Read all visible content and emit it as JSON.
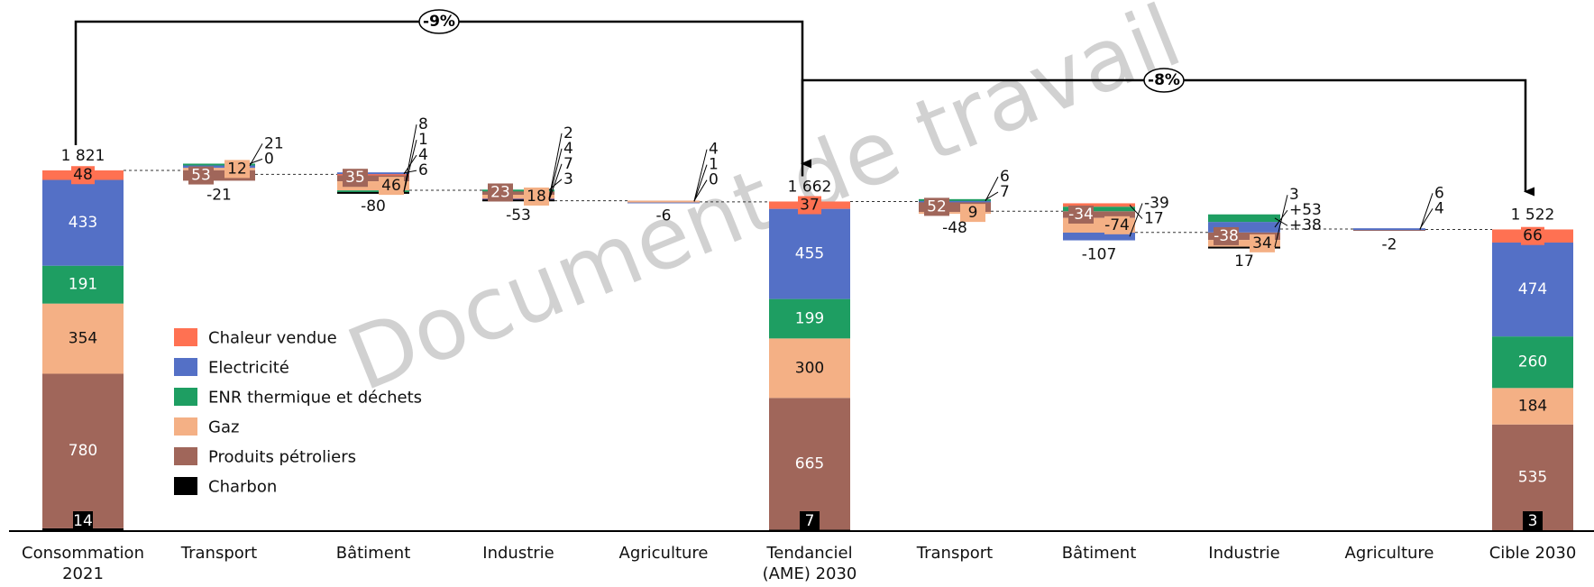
{
  "chart_data": {
    "type": "bar",
    "subtype": "stacked-waterfall",
    "title": "",
    "xlabel": "",
    "ylabel": "",
    "grid": false,
    "legend_position": "left, inside plot area",
    "watermark": "Document de travail",
    "colors": {
      "Chaleur vendue": "#ff7152",
      "Electricité": "#5470c6",
      "ENR thermique et déchets": "#1e9e62",
      "Gaz": "#f4b085",
      "Produits pétroliers": "#a0665a",
      "Charbon": "#000000"
    },
    "legend": [
      "Chaleur vendue",
      "Electricité",
      "ENR thermique et déchets",
      "Gaz",
      "Produits pétroliers",
      "Charbon"
    ],
    "categories": [
      {
        "line1": "Consommation",
        "line2": "2021"
      },
      {
        "line1": "Transport",
        "line2": ""
      },
      {
        "line1": "Bâtiment",
        "line2": ""
      },
      {
        "line1": "Industrie",
        "line2": ""
      },
      {
        "line1": "Agriculture",
        "line2": ""
      },
      {
        "line1": "Tendanciel",
        "line2": "(AME) 2030"
      },
      {
        "line1": "Transport",
        "line2": ""
      },
      {
        "line1": "Bâtiment",
        "line2": ""
      },
      {
        "line1": "Industrie",
        "line2": ""
      },
      {
        "line1": "Agriculture",
        "line2": ""
      },
      {
        "line1": "Cible 2030",
        "line2": ""
      }
    ],
    "totals": [
      {
        "category": "Consommation 2021",
        "total": 1821,
        "total_label": "1 821",
        "stack": [
          {
            "name": "Charbon",
            "value": 14,
            "label": "14"
          },
          {
            "name": "Produits pétroliers",
            "value": 780,
            "label": "780"
          },
          {
            "name": "Gaz",
            "value": 354,
            "label": "354"
          },
          {
            "name": "ENR thermique et déchets",
            "value": 191,
            "label": "191"
          },
          {
            "name": "Electricité",
            "value": 433,
            "label": "433"
          },
          {
            "name": "Chaleur vendue",
            "value": 48,
            "label": "48"
          }
        ]
      },
      {
        "category": "Tendanciel (AME) 2030",
        "total": 1662,
        "total_label": "1 662",
        "stack": [
          {
            "name": "Charbon",
            "value": 7,
            "label": "7"
          },
          {
            "name": "Produits pétroliers",
            "value": 665,
            "label": "665"
          },
          {
            "name": "Gaz",
            "value": 300,
            "label": "300"
          },
          {
            "name": "ENR thermique et déchets",
            "value": 199,
            "label": "199"
          },
          {
            "name": "Electricité",
            "value": 455,
            "label": "455"
          },
          {
            "name": "Chaleur vendue",
            "value": 37,
            "label": "37"
          }
        ]
      },
      {
        "category": "Cible 2030",
        "total": 1522,
        "total_label": "1 522",
        "stack": [
          {
            "name": "Charbon",
            "value": 3,
            "label": "3"
          },
          {
            "name": "Produits pétroliers",
            "value": 535,
            "label": "535"
          },
          {
            "name": "Gaz",
            "value": 184,
            "label": "184"
          },
          {
            "name": "ENR thermique et déchets",
            "value": 260,
            "label": "260"
          },
          {
            "name": "Electricité",
            "value": 474,
            "label": "474"
          },
          {
            "name": "Chaleur vendue",
            "value": 66,
            "label": "66"
          }
        ]
      }
    ],
    "deltas": [
      {
        "category": "Transport",
        "start": 1821,
        "net": -21,
        "net_label": "-21",
        "changes": [
          {
            "name": "Produits pétroliers",
            "value": -53,
            "label": "53"
          },
          {
            "name": "Gaz",
            "value": 12,
            "label": "12"
          },
          {
            "name": "Electricité",
            "value": 21,
            "label": "21"
          },
          {
            "name": "ENR thermique et déchets",
            "value": 0,
            "label": "0"
          }
        ]
      },
      {
        "category": "Bâtiment",
        "start": 1800,
        "net": -80,
        "net_label": "-80",
        "changes": [
          {
            "name": "Produits pétroliers",
            "value": -35,
            "label": "35"
          },
          {
            "name": "Gaz",
            "value": -46,
            "label": "46"
          },
          {
            "name": "Chaleur vendue",
            "value": 4,
            "label": "4"
          },
          {
            "name": "Electricité",
            "value": 6,
            "label": "6"
          },
          {
            "name": "ENR thermique et déchets",
            "value": -8,
            "label": "8"
          },
          {
            "name": "Charbon",
            "value": -1,
            "label": "1"
          }
        ]
      },
      {
        "category": "Industrie",
        "start": 1720,
        "net": -53,
        "net_label": "-53",
        "changes": [
          {
            "name": "Produits pétroliers",
            "value": -23,
            "label": "23"
          },
          {
            "name": "Gaz",
            "value": -18,
            "label": "18"
          },
          {
            "name": "Chaleur vendue",
            "value": -2,
            "label": "2"
          },
          {
            "name": "Electricité",
            "value": -4,
            "label": "4"
          },
          {
            "name": "ENR thermique et déchets",
            "value": 3,
            "label": "3"
          },
          {
            "name": "Charbon",
            "value": -7,
            "label": "7"
          }
        ]
      },
      {
        "category": "Agriculture",
        "start": 1667,
        "net": -6,
        "net_label": "-6",
        "changes": [
          {
            "name": "Produits pétroliers",
            "value": -4,
            "label": "4"
          },
          {
            "name": "Gaz",
            "value": 0,
            "label": "0"
          },
          {
            "name": "Electricité",
            "value": -1,
            "label": "1"
          }
        ]
      },
      {
        "category": "Transport",
        "start": 1662,
        "net": -48,
        "net_label": "-48",
        "changes": [
          {
            "name": "Produits pétroliers",
            "value": -52,
            "label": "52"
          },
          {
            "name": "Gaz",
            "value": -9,
            "label": "9"
          },
          {
            "name": "Electricité",
            "value": 6,
            "label": "6"
          },
          {
            "name": "ENR thermique et déchets",
            "value": 7,
            "label": "7"
          }
        ]
      },
      {
        "category": "Bâtiment",
        "start": 1614,
        "net": -107,
        "net_label": "-107",
        "changes": [
          {
            "name": "Produits pétroliers",
            "value": -34,
            "label": "-34"
          },
          {
            "name": "Gaz",
            "value": -74,
            "label": "-74"
          },
          {
            "name": "Electricité",
            "value": -39,
            "label": "-39"
          },
          {
            "name": "ENR thermique et déchets",
            "value": 23,
            "label": ""
          },
          {
            "name": "Chaleur vendue",
            "value": 17,
            "label": "17"
          }
        ]
      },
      {
        "category": "Industrie",
        "start": 1507,
        "net": 17,
        "net_label": "17",
        "changes": [
          {
            "name": "Produits pétroliers",
            "value": -38,
            "label": "-38"
          },
          {
            "name": "Gaz",
            "value": -34,
            "label": "34"
          },
          {
            "name": "Charbon",
            "value": -3,
            "label": "3"
          },
          {
            "name": "Electricité",
            "value": 53,
            "label": "+53"
          },
          {
            "name": "ENR thermique et déchets",
            "value": 38,
            "label": "+38"
          }
        ]
      },
      {
        "category": "Agriculture",
        "start": 1524,
        "net": -2,
        "net_label": "-2",
        "changes": [
          {
            "name": "Produits pétroliers",
            "value": -6,
            "label": "6"
          },
          {
            "name": "Electricité",
            "value": 4,
            "label": "4"
          }
        ]
      }
    ],
    "annotations": [
      {
        "text": "-9%",
        "from": "Consommation 2021",
        "to": "Tendanciel (AME) 2030"
      },
      {
        "text": "-8%",
        "from": "Tendanciel (AME) 2030",
        "to": "Cible 2030"
      }
    ]
  }
}
